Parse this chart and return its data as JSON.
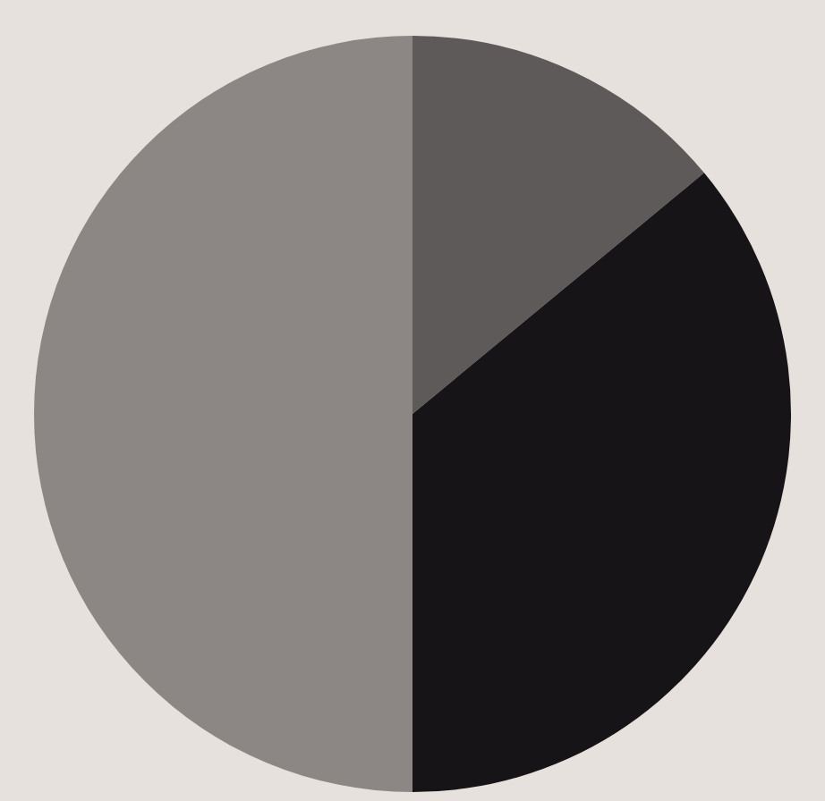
{
  "chart_data": {
    "type": "pie",
    "categories": [
      null,
      null,
      null
    ],
    "values": [
      14,
      36,
      50
    ],
    "colors": [
      "#5e5a59",
      "#161416",
      "#8c8785"
    ]
  }
}
